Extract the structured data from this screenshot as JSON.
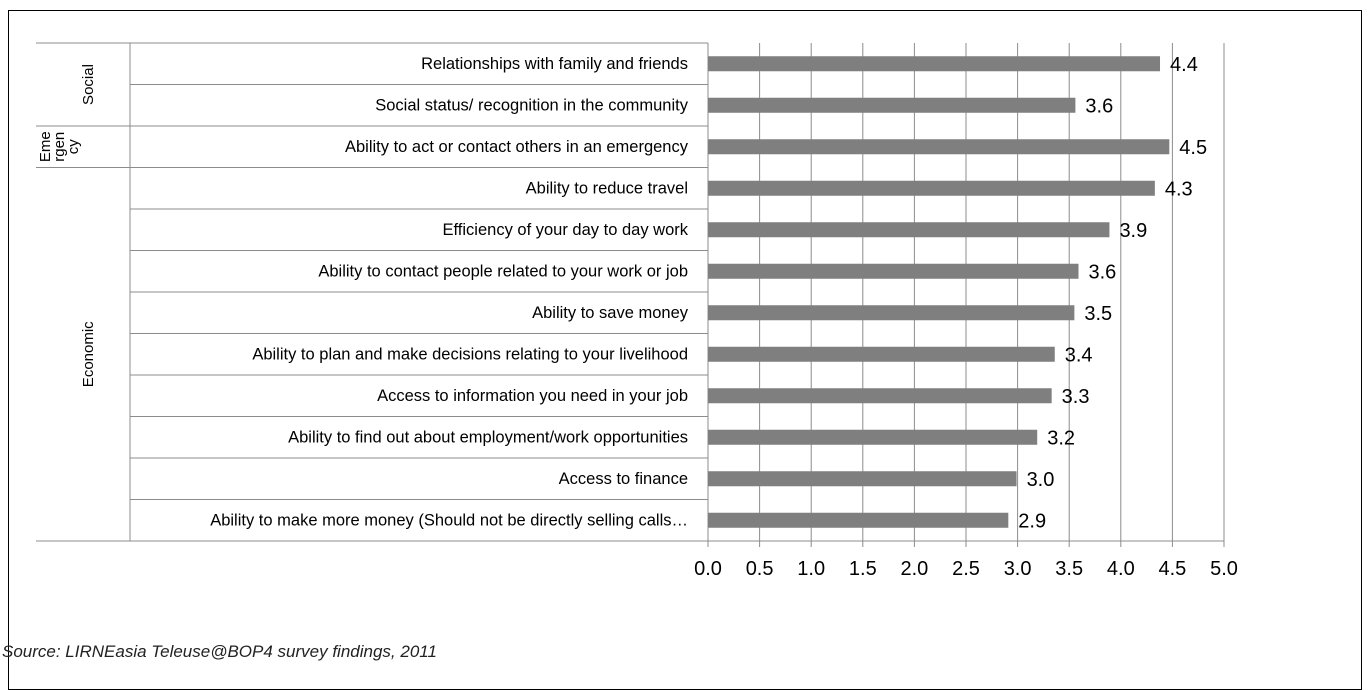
{
  "chart_data": {
    "type": "bar",
    "orientation": "horizontal",
    "xlim": [
      0,
      5
    ],
    "xticks": [
      "0.0",
      "0.5",
      "1.0",
      "1.5",
      "2.0",
      "2.5",
      "3.0",
      "3.5",
      "4.0",
      "4.5",
      "5.0"
    ],
    "grid": true,
    "bar_color": "#7f7f7f",
    "groups": [
      {
        "name": "Social",
        "label_lines": [
          "Social"
        ],
        "start": 0,
        "end": 1
      },
      {
        "name": "Emergency",
        "label_lines": [
          "Eme",
          "rgen",
          "cy"
        ],
        "start": 2,
        "end": 2
      },
      {
        "name": "Economic",
        "label_lines": [
          "Economic"
        ],
        "start": 3,
        "end": 11
      }
    ],
    "categories": [
      "Relationships with family and friends",
      "Social status/ recognition in the community",
      "Ability to act or contact others in an emergency",
      "Ability to reduce travel",
      "Efficiency of your day to day work",
      "Ability to contact people related to your work or job",
      "Ability to save money",
      "Ability to plan and make decisions relating to your livelihood",
      "Access to information you need in your job",
      "Ability to find out about employment/work opportunities",
      "Access to finance",
      "Ability to make more money (Should not be directly selling calls…"
    ],
    "values": [
      4.38,
      3.56,
      4.47,
      4.33,
      3.89,
      3.59,
      3.55,
      3.36,
      3.33,
      3.19,
      2.99,
      2.91
    ],
    "data_labels": [
      "4.4",
      "3.6",
      "4.5",
      "4.3",
      "3.9",
      "3.6",
      "3.5",
      "3.4",
      "3.3",
      "3.2",
      "3.0",
      "2.9"
    ]
  },
  "source_note": "Source: LIRNEasia Teleuse@BOP4 survey findings, 2011"
}
